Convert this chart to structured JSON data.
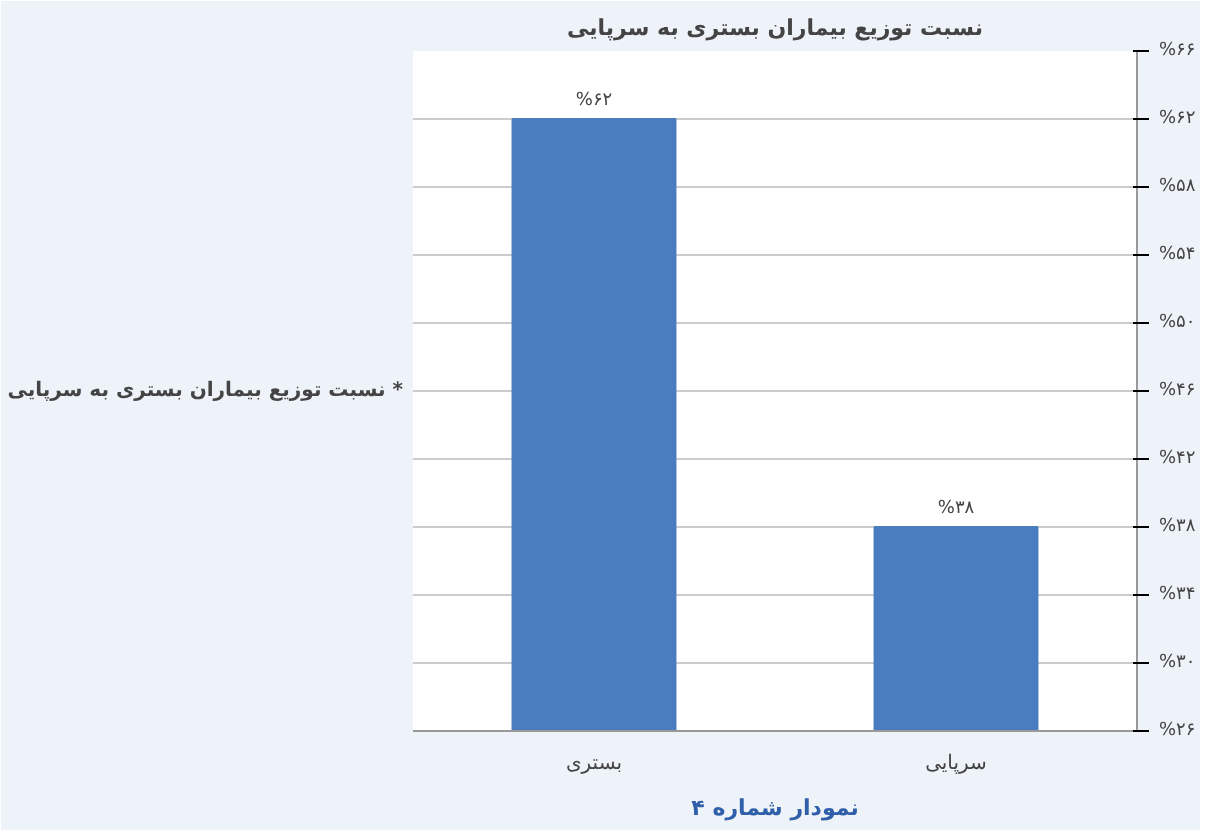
{
  "chart_data": {
    "type": "bar",
    "title": "نسبت توزیع بیماران بستری به سرپایی",
    "ylabel": "نسبت توزیع بیماران بستری به سرپایی *",
    "categories": [
      "بستری",
      "سرپایی"
    ],
    "values": [
      62,
      38
    ],
    "color": "#4a7cc0",
    "value_labels": [
      "%۶۲",
      "%۳۸"
    ],
    "ylim": [
      26,
      66
    ],
    "yticks": [
      {
        "value": 26,
        "label": "%۲۶"
      },
      {
        "value": 30,
        "label": "%۳۰"
      },
      {
        "value": 34,
        "label": "%۳۴"
      },
      {
        "value": 38,
        "label": "%۳۸"
      },
      {
        "value": 42,
        "label": "%۴۲"
      },
      {
        "value": 46,
        "label": "%۴۶"
      },
      {
        "value": 50,
        "label": "%۵۰"
      },
      {
        "value": 54,
        "label": "%۵۴"
      },
      {
        "value": 58,
        "label": "%۵۸"
      },
      {
        "value": 62,
        "label": "%۶۲"
      },
      {
        "value": 66,
        "label": "%۶۶"
      }
    ],
    "grid": "y",
    "annotations": [
      "نمودار شماره ۴"
    ]
  }
}
